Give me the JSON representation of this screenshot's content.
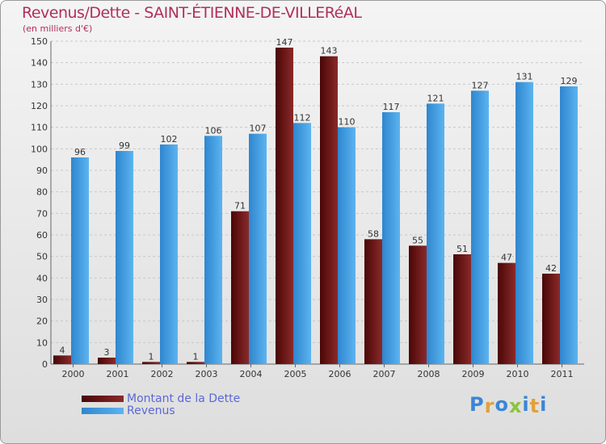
{
  "chart_data": {
    "type": "bar",
    "title": "Revenus/Dette - SAINT-ÉTIENNE-DE-VILLERéAL",
    "subtitle": "(en milliers d'€)",
    "xlabel": "",
    "ylabel": "",
    "ylim": [
      0,
      150
    ],
    "yticks": [
      0,
      10,
      20,
      30,
      40,
      50,
      60,
      70,
      80,
      90,
      100,
      110,
      120,
      130,
      140,
      150
    ],
    "grid": true,
    "categories": [
      "2000",
      "2001",
      "2002",
      "2003",
      "2004",
      "2005",
      "2006",
      "2007",
      "2008",
      "2009",
      "2010",
      "2011"
    ],
    "series": [
      {
        "name": "Montant de la Dette",
        "color": "#7a1616",
        "values": [
          4,
          3,
          1,
          1,
          71,
          147,
          143,
          58,
          55,
          51,
          47,
          42
        ]
      },
      {
        "name": "Revenus",
        "color": "#4aa3e6",
        "values": [
          96,
          99,
          102,
          106,
          107,
          112,
          110,
          117,
          121,
          127,
          131,
          129
        ]
      }
    ],
    "legend_position": "bottom-left"
  },
  "branding": {
    "logo_letters": [
      "P",
      "r",
      "o",
      "x",
      "i",
      "t",
      "i"
    ],
    "logo_colors": [
      "#3a86d8",
      "#e2a13a",
      "#3a86d8",
      "#8cc43c",
      "#3a86d8",
      "#e2a13a",
      "#3a86d8"
    ]
  }
}
